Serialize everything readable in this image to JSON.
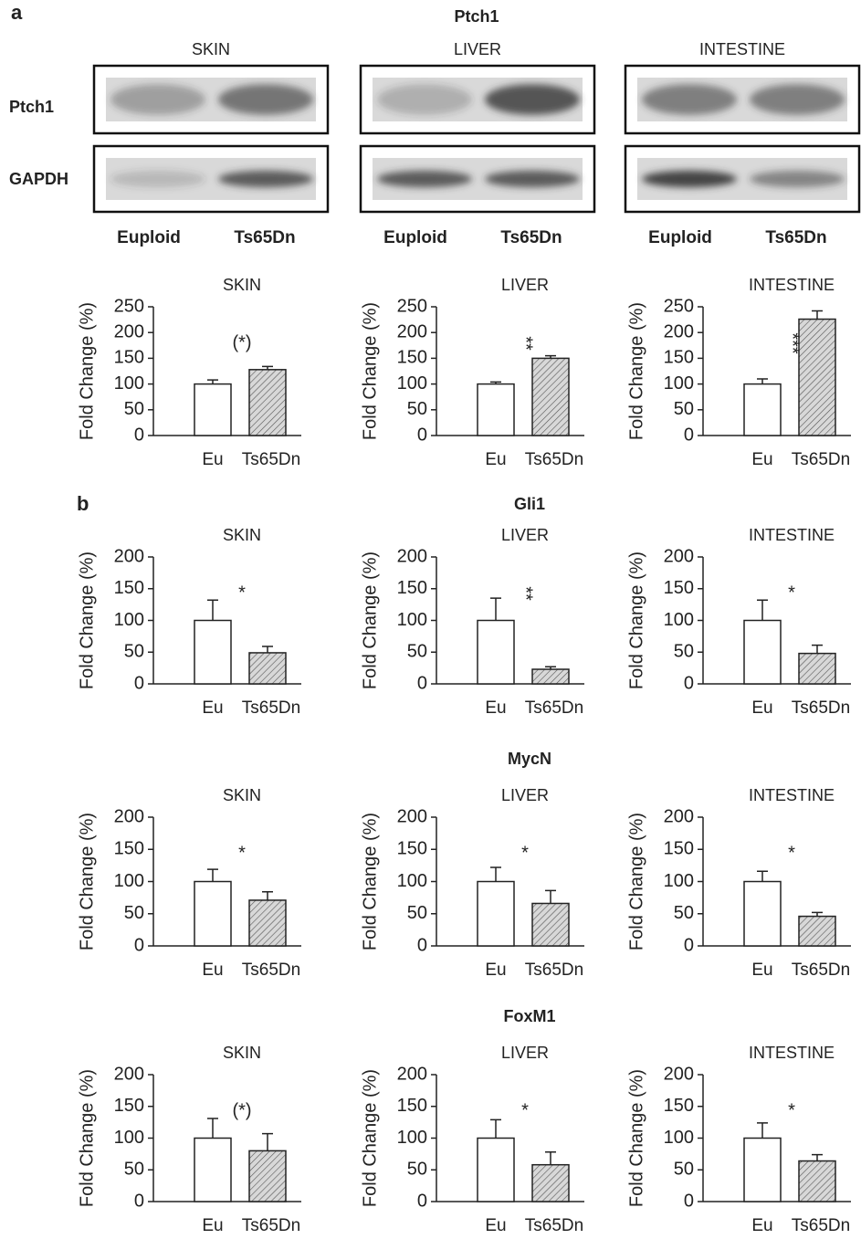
{
  "panel_labels": [
    "a",
    "b"
  ],
  "blot": {
    "title": "Ptch1",
    "tissues": [
      "SKIN",
      "LIVER",
      "INTESTINE"
    ],
    "rows": [
      "Ptch1",
      "GAPDH"
    ],
    "lanes": [
      "Euploid",
      "Ts65Dn"
    ]
  },
  "sections": [
    "Gli1",
    "MycN",
    "FoxM1"
  ],
  "chart_data": [
    {
      "type": "bar",
      "title": "SKIN",
      "y_label": "Fold Change (%)",
      "categories": [
        "Eu",
        "Ts65Dn"
      ],
      "values": [
        100,
        128
      ],
      "errors": [
        8,
        6
      ],
      "colors": [
        "#ffffff",
        "#cfcfcf"
      ],
      "hatch": [
        false,
        true
      ],
      "annotation": "(*)",
      "annotation_vertical": false,
      "ylim": [
        0,
        250
      ],
      "yticks": [
        0,
        50,
        100,
        150,
        200,
        250
      ]
    },
    {
      "type": "bar",
      "title": "LIVER",
      "y_label": "Fold Change (%)",
      "categories": [
        "Eu",
        "Ts65Dn"
      ],
      "values": [
        100,
        150
      ],
      "errors": [
        4,
        5
      ],
      "colors": [
        "#ffffff",
        "#cfcfcf"
      ],
      "hatch": [
        false,
        true
      ],
      "annotation": "**",
      "annotation_vertical": true,
      "ylim": [
        0,
        250
      ],
      "yticks": [
        0,
        50,
        100,
        150,
        200,
        250
      ]
    },
    {
      "type": "bar",
      "title": "INTESTINE",
      "y_label": "Fold Change (%)",
      "categories": [
        "Eu",
        "Ts65Dn"
      ],
      "values": [
        100,
        226
      ],
      "errors": [
        10,
        16
      ],
      "colors": [
        "#ffffff",
        "#cfcfcf"
      ],
      "hatch": [
        false,
        true
      ],
      "annotation": "***",
      "annotation_vertical": true,
      "ylim": [
        0,
        250
      ],
      "yticks": [
        0,
        50,
        100,
        150,
        200,
        250
      ]
    },
    {
      "type": "bar",
      "title": "SKIN",
      "y_label": "Fold Change (%)",
      "categories": [
        "Eu",
        "Ts65Dn"
      ],
      "values": [
        100,
        49
      ],
      "errors": [
        32,
        10
      ],
      "colors": [
        "#ffffff",
        "#cfcfcf"
      ],
      "hatch": [
        false,
        true
      ],
      "annotation": "*",
      "annotation_vertical": false,
      "ylim": [
        0,
        200
      ],
      "yticks": [
        0,
        50,
        100,
        150,
        200
      ]
    },
    {
      "type": "bar",
      "title": "LIVER",
      "y_label": "Fold Change (%)",
      "categories": [
        "Eu",
        "Ts65Dn"
      ],
      "values": [
        100,
        23
      ],
      "errors": [
        35,
        4
      ],
      "colors": [
        "#ffffff",
        "#cfcfcf"
      ],
      "hatch": [
        false,
        true
      ],
      "annotation": "**",
      "annotation_vertical": true,
      "ylim": [
        0,
        200
      ],
      "yticks": [
        0,
        50,
        100,
        150,
        200
      ]
    },
    {
      "type": "bar",
      "title": "INTESTINE",
      "y_label": "Fold Change (%)",
      "categories": [
        "Eu",
        "Ts65Dn"
      ],
      "values": [
        100,
        48
      ],
      "errors": [
        32,
        13
      ],
      "colors": [
        "#ffffff",
        "#cfcfcf"
      ],
      "hatch": [
        false,
        true
      ],
      "annotation": "*",
      "annotation_vertical": false,
      "ylim": [
        0,
        200
      ],
      "yticks": [
        0,
        50,
        100,
        150,
        200
      ]
    },
    {
      "type": "bar",
      "title": "SKIN",
      "y_label": "Fold Change (%)",
      "categories": [
        "Eu",
        "Ts65Dn"
      ],
      "values": [
        100,
        71
      ],
      "errors": [
        19,
        13
      ],
      "colors": [
        "#ffffff",
        "#cfcfcf"
      ],
      "hatch": [
        false,
        true
      ],
      "annotation": "*",
      "annotation_vertical": false,
      "ylim": [
        0,
        200
      ],
      "yticks": [
        0,
        50,
        100,
        150,
        200
      ]
    },
    {
      "type": "bar",
      "title": "LIVER",
      "y_label": "Fold Change (%)",
      "categories": [
        "Eu",
        "Ts65Dn"
      ],
      "values": [
        100,
        66
      ],
      "errors": [
        22,
        20
      ],
      "colors": [
        "#ffffff",
        "#cfcfcf"
      ],
      "hatch": [
        false,
        true
      ],
      "annotation": "*",
      "annotation_vertical": false,
      "ylim": [
        0,
        200
      ],
      "yticks": [
        0,
        50,
        100,
        150,
        200
      ]
    },
    {
      "type": "bar",
      "title": "INTESTINE",
      "y_label": "Fold Change (%)",
      "categories": [
        "Eu",
        "Ts65Dn"
      ],
      "values": [
        100,
        46
      ],
      "errors": [
        16,
        6
      ],
      "colors": [
        "#ffffff",
        "#cfcfcf"
      ],
      "hatch": [
        false,
        true
      ],
      "annotation": "*",
      "annotation_vertical": false,
      "ylim": [
        0,
        200
      ],
      "yticks": [
        0,
        50,
        100,
        150,
        200
      ]
    },
    {
      "type": "bar",
      "title": "SKIN",
      "y_label": "Fold Change (%)",
      "categories": [
        "Eu",
        "Ts65Dn"
      ],
      "values": [
        100,
        80
      ],
      "errors": [
        31,
        27
      ],
      "colors": [
        "#ffffff",
        "#cfcfcf"
      ],
      "hatch": [
        false,
        true
      ],
      "annotation": "(*)",
      "annotation_vertical": false,
      "ylim": [
        0,
        200
      ],
      "yticks": [
        0,
        50,
        100,
        150,
        200
      ]
    },
    {
      "type": "bar",
      "title": "LIVER",
      "y_label": "Fold Change (%)",
      "categories": [
        "Eu",
        "Ts65Dn"
      ],
      "values": [
        100,
        58
      ],
      "errors": [
        29,
        20
      ],
      "colors": [
        "#ffffff",
        "#cfcfcf"
      ],
      "hatch": [
        false,
        true
      ],
      "annotation": "*",
      "annotation_vertical": false,
      "ylim": [
        0,
        200
      ],
      "yticks": [
        0,
        50,
        100,
        150,
        200
      ]
    },
    {
      "type": "bar",
      "title": "INTESTINE",
      "y_label": "Fold Change (%)",
      "categories": [
        "Eu",
        "Ts65Dn"
      ],
      "values": [
        100,
        64
      ],
      "errors": [
        24,
        10
      ],
      "colors": [
        "#ffffff",
        "#cfcfcf"
      ],
      "hatch": [
        false,
        true
      ],
      "annotation": "*",
      "annotation_vertical": false,
      "ylim": [
        0,
        200
      ],
      "yticks": [
        0,
        50,
        100,
        150,
        200
      ]
    }
  ]
}
